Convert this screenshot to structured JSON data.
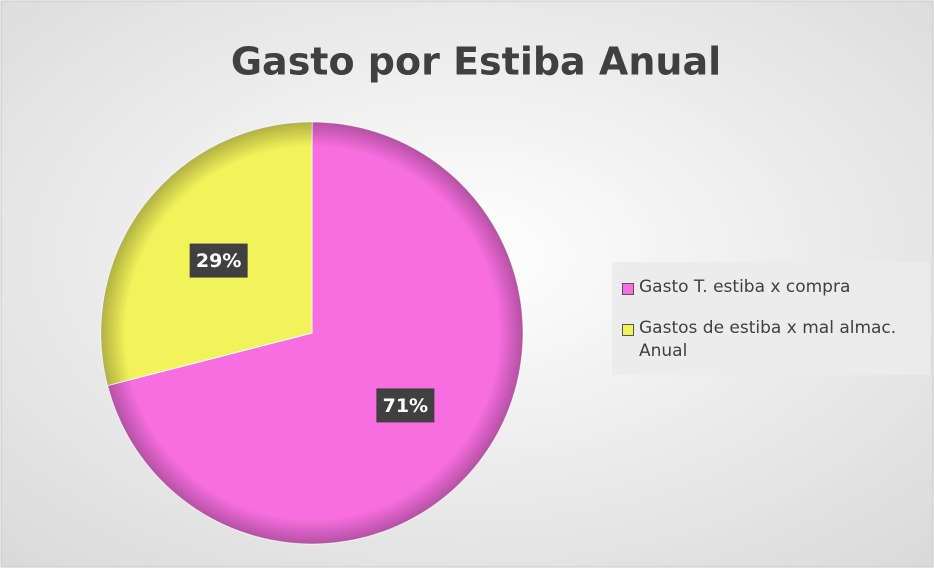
{
  "chart_data": {
    "type": "pie",
    "title": "Gasto por Estiba Anual",
    "categories": [
      "Gasto T. estiba x compra",
      "Gastos de estiba x mal almac. Anual"
    ],
    "values": [
      71,
      29
    ],
    "value_labels": [
      "71%",
      "29%"
    ],
    "colors": [
      "#f76ee0",
      "#f2f25a"
    ],
    "legend": "right"
  }
}
